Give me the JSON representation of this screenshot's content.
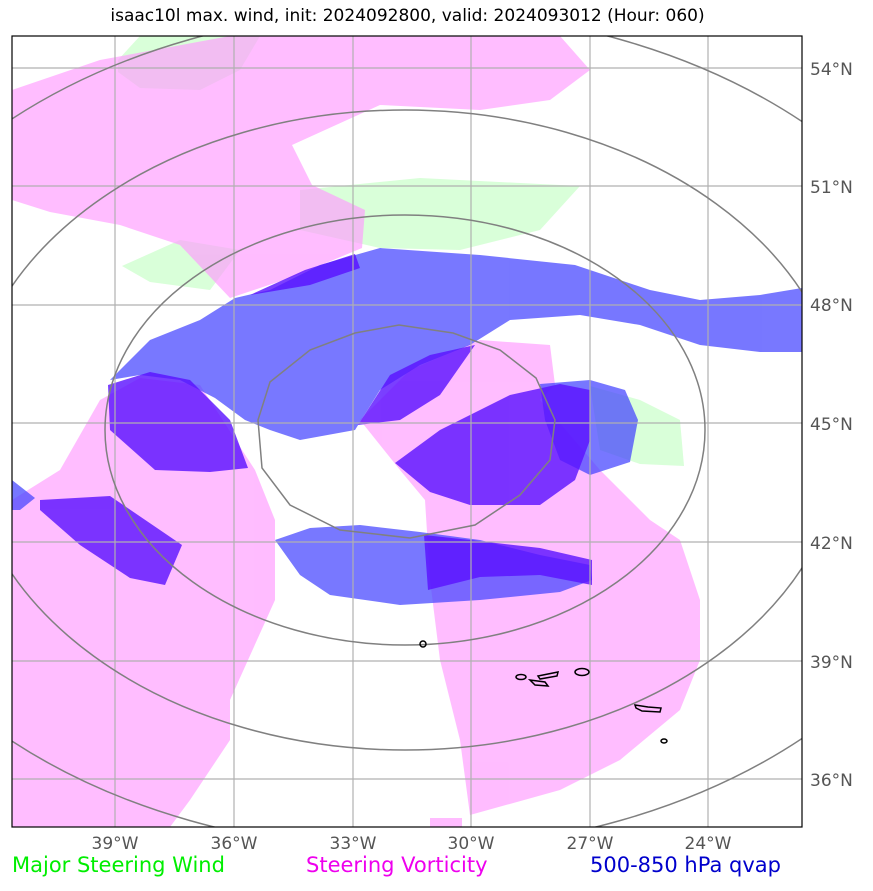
{
  "title": "isaac10l max. wind, init: 2024092800, valid: 2024093012 (Hour: 060)",
  "lon_ticks": [
    "39°W",
    "36°W",
    "33°W",
    "30°W",
    "27°W",
    "24°W"
  ],
  "lat_ticks": [
    "54°N",
    "51°N",
    "48°N",
    "45°N",
    "42°N",
    "39°N",
    "36°N"
  ],
  "legend": [
    {
      "label": "Major Steering Wind",
      "color": "#00ee00"
    },
    {
      "label": "Steering Vorticity",
      "color": "#ee00ee"
    },
    {
      "label": "500-850 hPa qvap",
      "color": "#0000cc"
    }
  ],
  "layer_colors": {
    "wind": "#ccffcc",
    "vorticity": "#ff99ff",
    "qvap": "#4444ff",
    "qvap_dark": "#5a10ff",
    "rings": "#808080",
    "grid": "#b0b0b0",
    "coast": "#000000"
  }
}
